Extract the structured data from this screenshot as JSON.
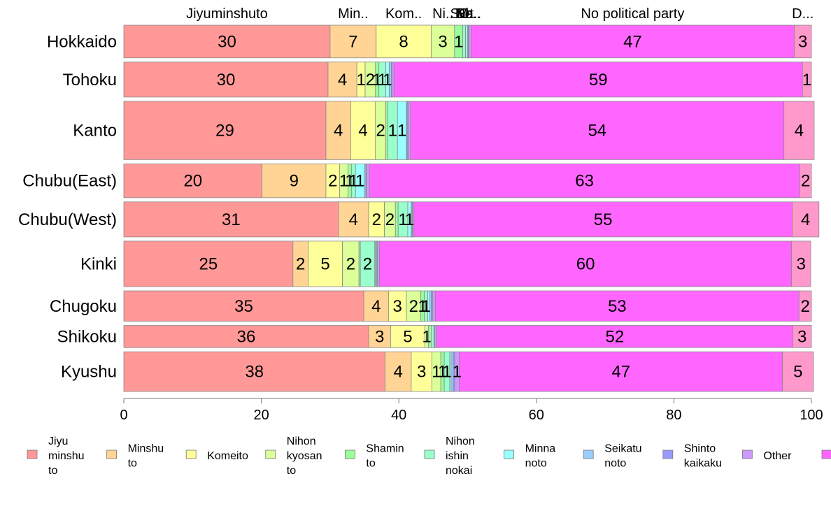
{
  "chart_data": {
    "type": "bar",
    "orientation": "horizontal",
    "stacked": true,
    "variable_width": true,
    "xlim": [
      0,
      100
    ],
    "x_ticks": [
      0,
      20,
      40,
      60,
      80,
      100
    ],
    "grid": false,
    "legend_position": "bottom",
    "top_labels": [
      "Jiyuminshuto",
      "Min..",
      "Kom..",
      "Ni..",
      "S..",
      "N..",
      "M..",
      "Se..",
      "Sh..",
      "Ot..",
      "No political party",
      "D..."
    ],
    "categories": [
      "Hokkaido",
      "Tohoku",
      "Kanto",
      "Chubu(East)",
      "Chubu(West)",
      "Kinki",
      "Chugoku",
      "Shikoku",
      "Kyushu"
    ],
    "row_weights": [
      0.56,
      0.6,
      1.0,
      0.58,
      0.6,
      0.78,
      0.52,
      0.38,
      0.68
    ],
    "series": [
      {
        "name": "Jiyu minshu to",
        "color": "#ff9896",
        "values": [
          30.0,
          29.7,
          29.4,
          20.1,
          31.2,
          24.6,
          34.9,
          35.6,
          38.0
        ]
      },
      {
        "name": "Minshu to",
        "color": "#ffd494",
        "values": [
          6.7,
          4.2,
          3.6,
          9.3,
          4.4,
          2.2,
          3.6,
          3.2,
          3.8
        ]
      },
      {
        "name": "Komeito",
        "color": "#ffff99",
        "values": [
          8.0,
          1.2,
          3.6,
          2.0,
          2.3,
          5.0,
          2.6,
          5.0,
          3.0
        ]
      },
      {
        "name": "Nihon kyosan to",
        "color": "#dcff99",
        "values": [
          3.4,
          1.5,
          1.5,
          1.2,
          1.6,
          2.4,
          2.1,
          0.5,
          1.3
        ]
      },
      {
        "name": "Shamin to",
        "color": "#99ff99",
        "values": [
          1.2,
          0.5,
          0.3,
          0.5,
          0.4,
          0.2,
          0.5,
          0.4,
          0.5
        ]
      },
      {
        "name": "Nihon ishin nokai",
        "color": "#99ffcc",
        "values": [
          0.4,
          1.0,
          1.4,
          0.6,
          1.4,
          2.1,
          0.5,
          0.4,
          0.8
        ]
      },
      {
        "name": "Minna noto",
        "color": "#99ffff",
        "values": [
          0.3,
          0.5,
          1.3,
          1.3,
          0.5,
          0.1,
          0.3,
          0.0,
          0.2
        ]
      },
      {
        "name": "Seikatu noto",
        "color": "#99ccff",
        "values": [
          0.1,
          0.3,
          0.1,
          0.2,
          0.1,
          0.2,
          0.2,
          0.0,
          0.3
        ]
      },
      {
        "name": "Shinto kaikaku",
        "color": "#9999ff",
        "values": [
          0.1,
          0.1,
          0.2,
          0.1,
          0.1,
          0.1,
          0.2,
          0.1,
          0.2
        ]
      },
      {
        "name": "Other",
        "color": "#cc99ff",
        "values": [
          0.3,
          0.3,
          0.3,
          0.4,
          0.2,
          0.3,
          0.4,
          0.3,
          0.7
        ]
      },
      {
        "name": "",
        "color": "#ff66ff",
        "values": [
          47.0,
          59.4,
          54.3,
          62.6,
          55.0,
          59.9,
          52.9,
          51.8,
          47.0
        ]
      },
      {
        "name": "",
        "color": "#ff99cc",
        "values": [
          2.5,
          1.3,
          4.4,
          1.7,
          3.9,
          2.8,
          1.8,
          2.7,
          4.5
        ]
      }
    ],
    "legend": [
      {
        "text": [
          "Jiyu",
          "minshu",
          "to"
        ],
        "color": "#ff9896"
      },
      {
        "text": [
          "Minshu",
          "to"
        ],
        "color": "#ffd494"
      },
      {
        "text": [
          "Komeito"
        ],
        "color": "#ffff99"
      },
      {
        "text": [
          "Nihon",
          "kyosan",
          "to"
        ],
        "color": "#dcff99"
      },
      {
        "text": [
          "Shamin",
          "to"
        ],
        "color": "#99ff99"
      },
      {
        "text": [
          "Nihon",
          "ishin",
          "nokai"
        ],
        "color": "#99ffcc"
      },
      {
        "text": [
          "Minna",
          "noto"
        ],
        "color": "#99ffff"
      },
      {
        "text": [
          "Seikatu",
          "noto"
        ],
        "color": "#99ccff"
      },
      {
        "text": [
          "Shinto",
          "kaikaku"
        ],
        "color": "#9999ff"
      },
      {
        "text": [
          "Other"
        ],
        "color": "#cc99ff"
      },
      {
        "text": [],
        "color": "#ff66ff"
      }
    ]
  }
}
